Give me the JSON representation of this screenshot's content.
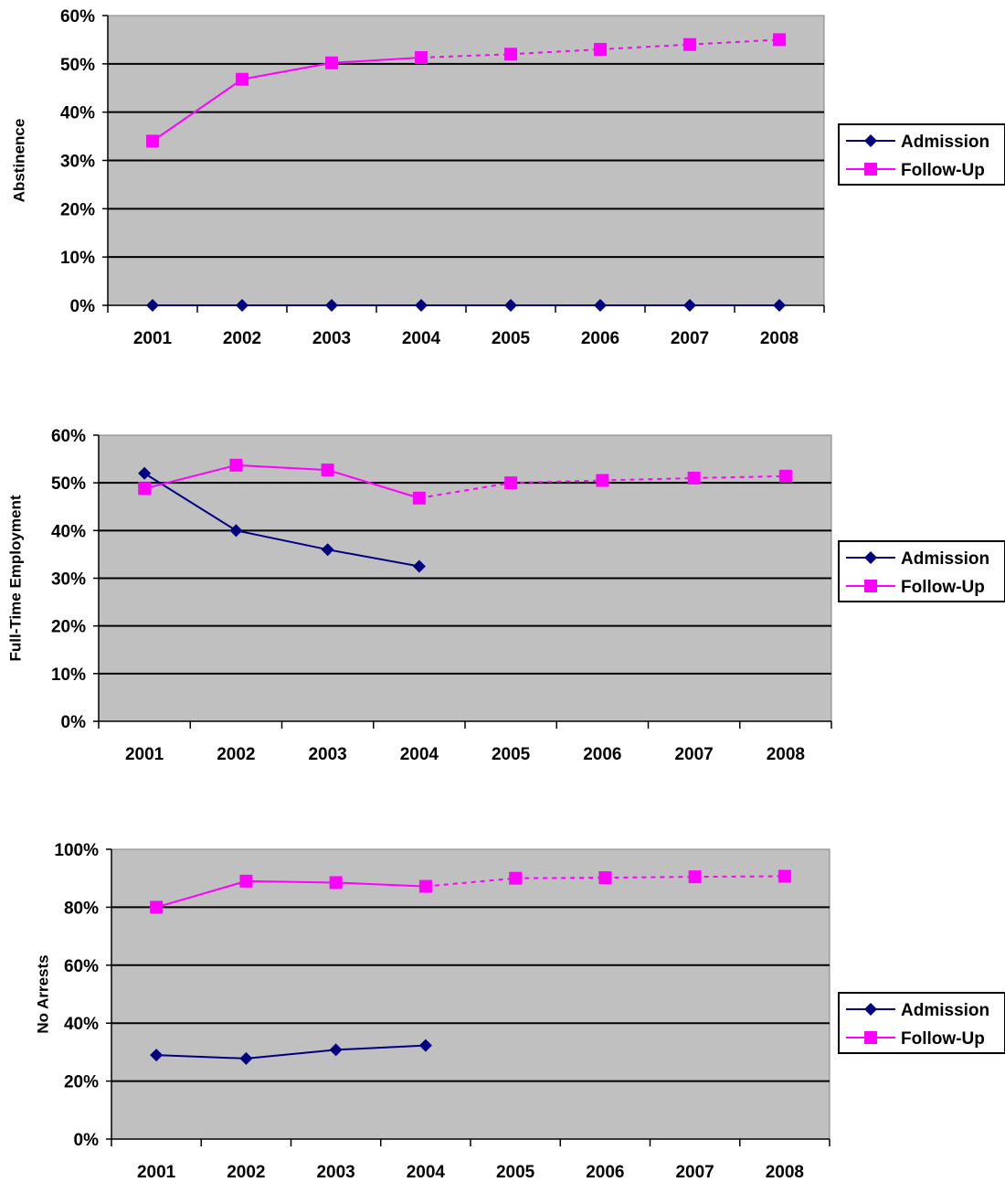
{
  "chart_data": [
    {
      "type": "line",
      "categories": [
        "2001",
        "2002",
        "2003",
        "2004",
        "2005",
        "2006",
        "2007",
        "2008"
      ],
      "ylabel": "Abstinence",
      "xlabel": "",
      "ylim": [
        0,
        60
      ],
      "yticks": [
        "0%",
        "10%",
        "20%",
        "30%",
        "40%",
        "50%",
        "60%"
      ],
      "grid": true,
      "legend": "right",
      "plot_background": "#c0c0c0",
      "series": [
        {
          "name": "Admission",
          "color": "#000080",
          "marker": "diamond",
          "values": [
            0,
            0,
            0,
            0,
            0,
            0,
            0,
            0
          ],
          "dashed_from_index": null
        },
        {
          "name": "Follow-Up",
          "color": "#ff00ff",
          "marker": "square",
          "values": [
            34,
            46.8,
            50.2,
            51.3,
            52,
            53,
            54,
            55
          ],
          "dashed_from_index": 3
        }
      ]
    },
    {
      "type": "line",
      "categories": [
        "2001",
        "2002",
        "2003",
        "2004",
        "2005",
        "2006",
        "2007",
        "2008"
      ],
      "ylabel": "Full-Time Employment",
      "xlabel": "",
      "ylim": [
        0,
        60
      ],
      "yticks": [
        "0%",
        "10%",
        "20%",
        "30%",
        "40%",
        "50%",
        "60%"
      ],
      "grid": true,
      "legend": "right",
      "plot_background": "#c0c0c0",
      "series": [
        {
          "name": "Admission",
          "color": "#000080",
          "marker": "diamond",
          "values": [
            52,
            40,
            36,
            32.5,
            null,
            null,
            null,
            null
          ],
          "dashed_from_index": null
        },
        {
          "name": "Follow-Up",
          "color": "#ff00ff",
          "marker": "square",
          "values": [
            48.8,
            53.7,
            52.7,
            46.8,
            50,
            50.5,
            51,
            51.4
          ],
          "dashed_from_index": 3
        }
      ]
    },
    {
      "type": "line",
      "categories": [
        "2001",
        "2002",
        "2003",
        "2004",
        "2005",
        "2006",
        "2007",
        "2008"
      ],
      "ylabel": "No Arrests",
      "xlabel": "",
      "ylim": [
        0,
        100
      ],
      "yticks": [
        "0%",
        "20%",
        "40%",
        "60%",
        "80%",
        "100%"
      ],
      "grid": true,
      "legend": "right",
      "plot_background": "#c0c0c0",
      "series": [
        {
          "name": "Admission",
          "color": "#000080",
          "marker": "diamond",
          "values": [
            29,
            27.8,
            30.8,
            32.3,
            null,
            null,
            null,
            null
          ],
          "dashed_from_index": null
        },
        {
          "name": "Follow-Up",
          "color": "#ff00ff",
          "marker": "square",
          "values": [
            80,
            89,
            88.5,
            87.2,
            90,
            90.2,
            90.5,
            90.7
          ],
          "dashed_from_index": 3
        }
      ]
    }
  ]
}
